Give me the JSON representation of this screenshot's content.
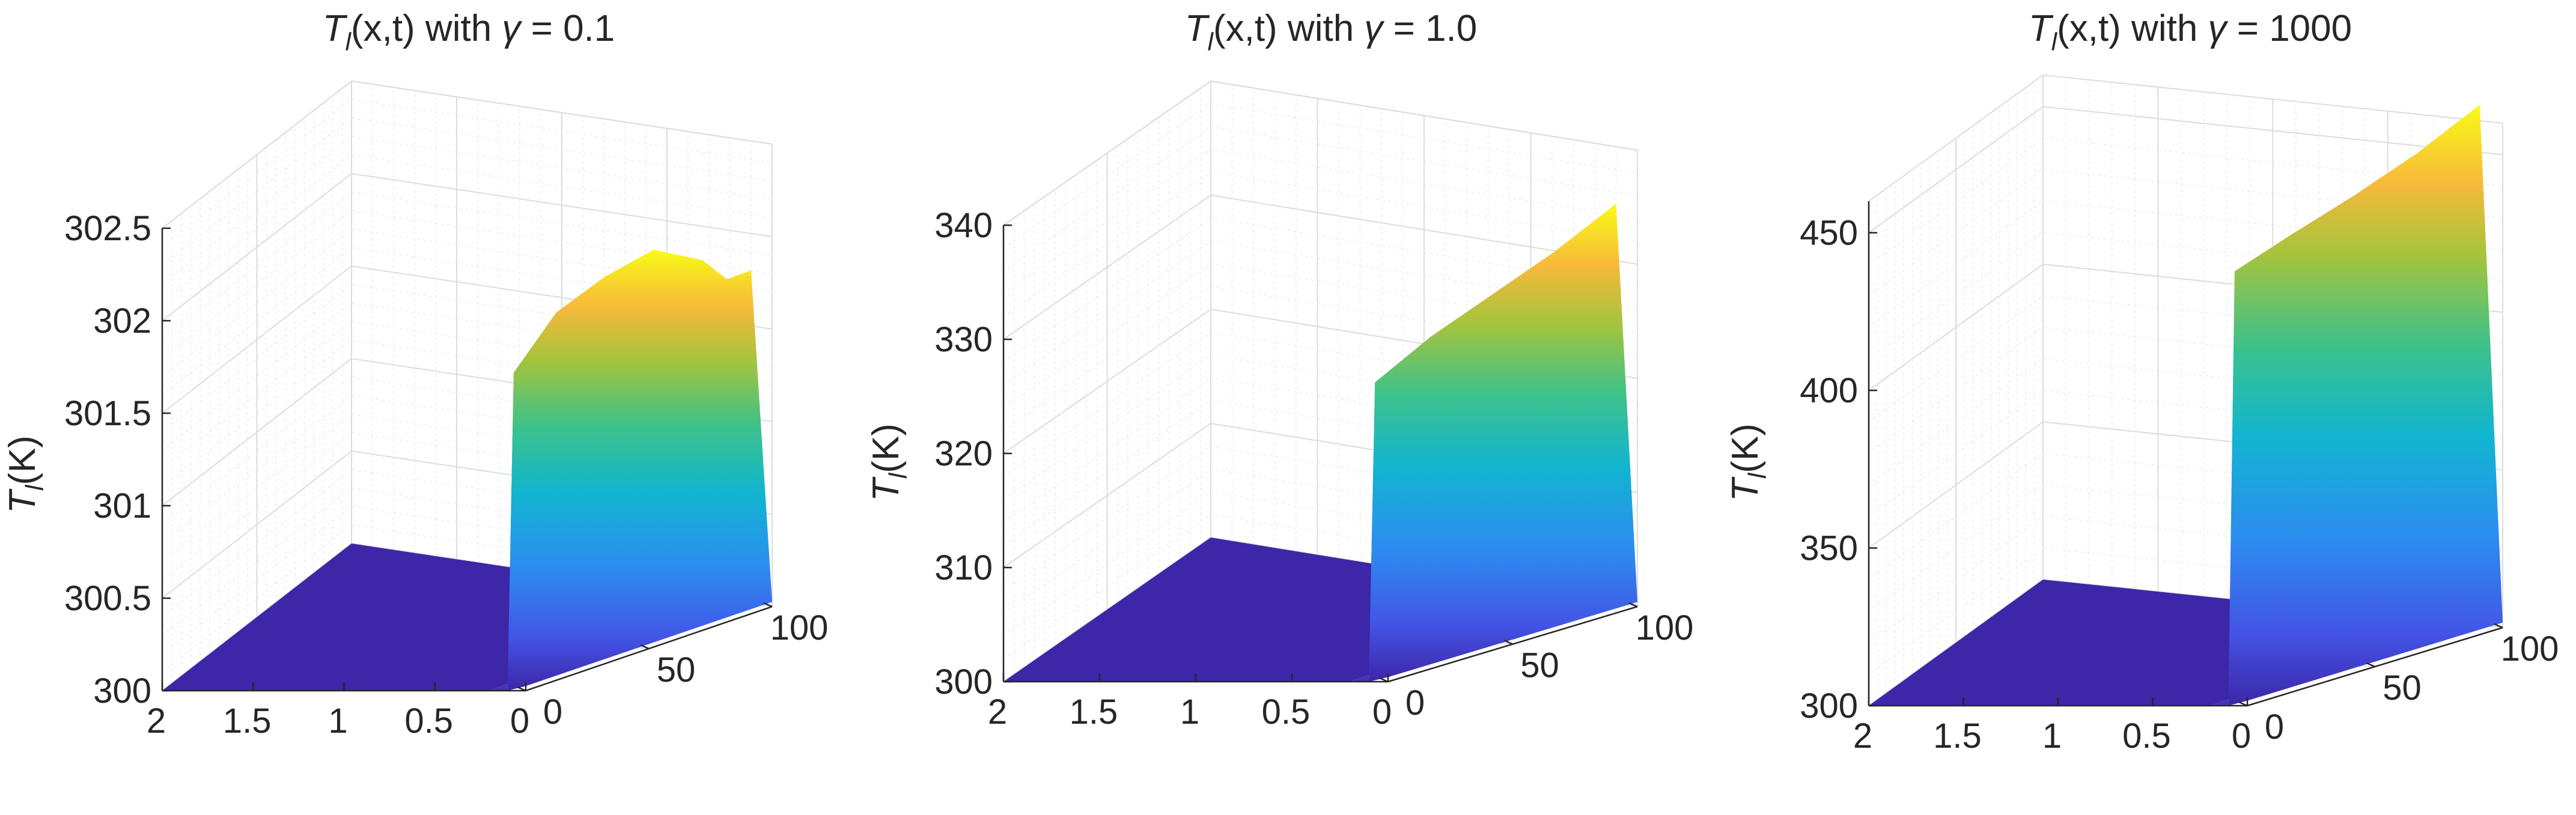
{
  "figure": {
    "panels": [
      {
        "title_parts": {
          "prefix": "T",
          "sub": "l",
          "middle": "(x,t) with ",
          "greek": "γ",
          "suffix": " = 0.1"
        },
        "ylabel_parts": {
          "prefix": "T",
          "sub": "l",
          "suffix": "(K)"
        }
      },
      {
        "title_parts": {
          "prefix": "T",
          "sub": "l",
          "middle": "(x,t) with ",
          "greek": "γ",
          "suffix": " = 1.0"
        },
        "ylabel_parts": {
          "prefix": "T",
          "sub": "l",
          "suffix": "(K)"
        }
      },
      {
        "title_parts": {
          "prefix": "T",
          "sub": "l",
          "middle": "(x,t) with ",
          "greek": "γ",
          "suffix": " = 1000"
        },
        "ylabel_parts": {
          "prefix": "T",
          "sub": "l",
          "suffix": "(K)"
        }
      }
    ]
  },
  "chart_data": [
    {
      "type": "surface",
      "title": "Tl(x,t) with γ = 0.1",
      "zlabel": "Tl(K)",
      "x_ticks": [
        "2",
        "1.5",
        "1",
        "0.5",
        "0"
      ],
      "t_ticks": [
        "0",
        "50",
        "100"
      ],
      "z_ticks": [
        "300",
        "300.5",
        "301",
        "301.5",
        "302",
        "302.5"
      ],
      "xlim": [
        0,
        2
      ],
      "tlim": [
        0,
        100
      ],
      "zlim": [
        300,
        302.5
      ],
      "baseline_T": 300,
      "peak_x": 0.1,
      "profile_T_vs_t": [
        [
          0,
          300
        ],
        [
          2,
          301.7
        ],
        [
          20,
          301.95
        ],
        [
          40,
          302.05
        ],
        [
          60,
          302.1
        ],
        [
          80,
          301.95
        ],
        [
          90,
          301.8
        ],
        [
          100,
          301.8
        ]
      ],
      "colormap": "parula",
      "grid": "on"
    },
    {
      "type": "surface",
      "title": "Tl(x,t) with γ = 1.0",
      "zlabel": "Tl(K)",
      "x_ticks": [
        "2",
        "1.5",
        "1",
        "0.5",
        "0"
      ],
      "t_ticks": [
        "0",
        "50",
        "100"
      ],
      "z_ticks": [
        "300",
        "310",
        "320",
        "330",
        "340"
      ],
      "xlim": [
        0,
        2
      ],
      "tlim": [
        0,
        100
      ],
      "zlim": [
        300,
        340
      ],
      "baseline_T": 300,
      "peak_x": 0.1,
      "profile_T_vs_t": [
        [
          0,
          300
        ],
        [
          2,
          326
        ],
        [
          25,
          328.5
        ],
        [
          50,
          330.5
        ],
        [
          75,
          332.5
        ],
        [
          100,
          335
        ]
      ],
      "colormap": "parula",
      "grid": "on"
    },
    {
      "type": "surface",
      "title": "Tl(x,t) with γ = 1000",
      "zlabel": "Tl(K)",
      "x_ticks": [
        "2",
        "1.5",
        "1",
        "0.5",
        "0"
      ],
      "t_ticks": [
        "0",
        "50",
        "100"
      ],
      "z_ticks": [
        "300",
        "350",
        "400",
        "450"
      ],
      "xlim": [
        0,
        2
      ],
      "tlim": [
        0,
        100
      ],
      "zlim": [
        300,
        460
      ],
      "baseline_T": 300,
      "peak_x": 0.1,
      "profile_T_vs_t": [
        [
          0,
          300
        ],
        [
          2,
          437
        ],
        [
          25,
          443
        ],
        [
          50,
          449
        ],
        [
          75,
          456
        ],
        [
          100,
          465
        ]
      ],
      "colormap": "parula",
      "grid": "on"
    }
  ]
}
